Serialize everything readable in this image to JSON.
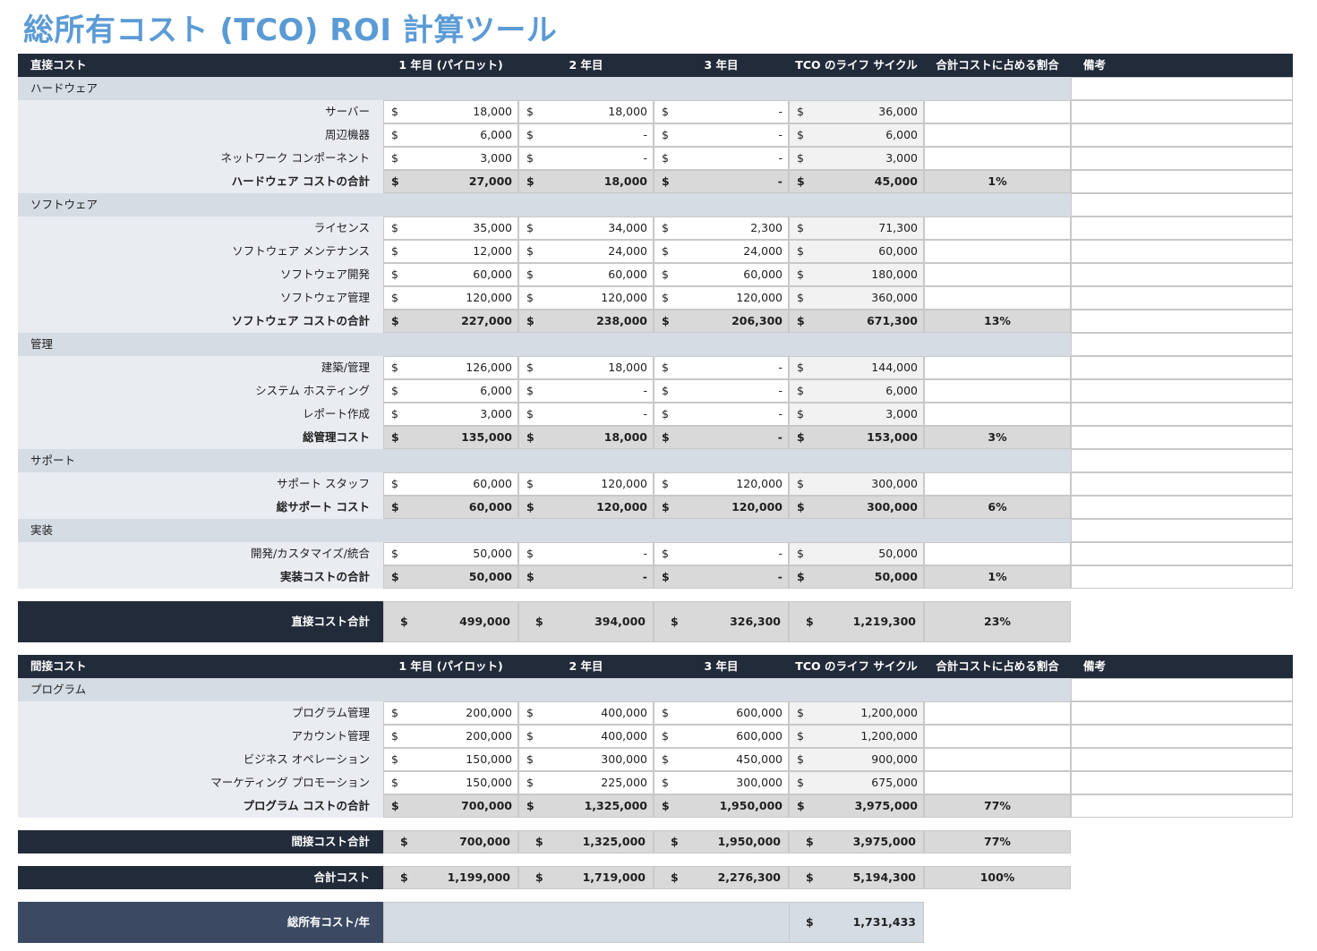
{
  "title": "総所有コスト (TCO) ROI 計算ツール",
  "columns": {
    "y1": "1 年目 (パイロット)",
    "y2": "2 年目",
    "y3": "3 年目",
    "lifecycle": "TCO のライフ サイクル",
    "pct": "合計コストに占める割合",
    "notes": "備考"
  },
  "currency": "$",
  "direct": {
    "header": "直接コスト",
    "categories": [
      {
        "name": "ハードウェア",
        "items": [
          {
            "label": "サーバー",
            "y1": "18,000",
            "y2": "18,000",
            "y3": "-",
            "lc": "36,000"
          },
          {
            "label": "周辺機器",
            "y1": "6,000",
            "y2": "-",
            "y3": "-",
            "lc": "6,000"
          },
          {
            "label": "ネットワーク コンポーネント",
            "y1": "3,000",
            "y2": "-",
            "y3": "-",
            "lc": "3,000"
          }
        ],
        "subtotal": {
          "label": "ハードウェア コストの合計",
          "y1": "27,000",
          "y2": "18,000",
          "y3": "-",
          "lc": "45,000",
          "pct": "1%"
        }
      },
      {
        "name": "ソフトウェア",
        "items": [
          {
            "label": "ライセンス",
            "y1": "35,000",
            "y2": "34,000",
            "y3": "2,300",
            "lc": "71,300"
          },
          {
            "label": "ソフトウェア メンテナンス",
            "y1": "12,000",
            "y2": "24,000",
            "y3": "24,000",
            "lc": "60,000"
          },
          {
            "label": "ソフトウェア開発",
            "y1": "60,000",
            "y2": "60,000",
            "y3": "60,000",
            "lc": "180,000"
          },
          {
            "label": "ソフトウェア管理",
            "y1": "120,000",
            "y2": "120,000",
            "y3": "120,000",
            "lc": "360,000"
          }
        ],
        "subtotal": {
          "label": "ソフトウェア コストの合計",
          "y1": "227,000",
          "y2": "238,000",
          "y3": "206,300",
          "lc": "671,300",
          "pct": "13%"
        }
      },
      {
        "name": "管理",
        "items": [
          {
            "label": "建築/管理",
            "y1": "126,000",
            "y2": "18,000",
            "y3": "-",
            "lc": "144,000"
          },
          {
            "label": "システム ホスティング",
            "y1": "6,000",
            "y2": "-",
            "y3": "-",
            "lc": "6,000"
          },
          {
            "label": "レポート作成",
            "y1": "3,000",
            "y2": "-",
            "y3": "-",
            "lc": "3,000"
          }
        ],
        "subtotal": {
          "label": "総管理コスト",
          "y1": "135,000",
          "y2": "18,000",
          "y3": "-",
          "lc": "153,000",
          "pct": "3%"
        }
      },
      {
        "name": "サポート",
        "items": [
          {
            "label": "サポート スタッフ",
            "y1": "60,000",
            "y2": "120,000",
            "y3": "120,000",
            "lc": "300,000"
          }
        ],
        "subtotal": {
          "label": "総サポート コスト",
          "y1": "60,000",
          "y2": "120,000",
          "y3": "120,000",
          "lc": "300,000",
          "pct": "6%"
        }
      },
      {
        "name": "実装",
        "items": [
          {
            "label": "開発/カスタマイズ/統合",
            "y1": "50,000",
            "y2": "-",
            "y3": "-",
            "lc": "50,000"
          }
        ],
        "subtotal": {
          "label": "実装コストの合計",
          "y1": "50,000",
          "y2": "-",
          "y3": "-",
          "lc": "50,000",
          "pct": "1%"
        }
      }
    ],
    "total": {
      "label": "直接コスト合計",
      "y1": "499,000",
      "y2": "394,000",
      "y3": "326,300",
      "lc": "1,219,300",
      "pct": "23%"
    }
  },
  "indirect": {
    "header": "間接コスト",
    "categories": [
      {
        "name": "プログラム",
        "items": [
          {
            "label": "プログラム管理",
            "y1": "200,000",
            "y2": "400,000",
            "y3": "600,000",
            "lc": "1,200,000"
          },
          {
            "label": "アカウント管理",
            "y1": "200,000",
            "y2": "400,000",
            "y3": "600,000",
            "lc": "1,200,000"
          },
          {
            "label": "ビジネス オペレーション",
            "y1": "150,000",
            "y2": "300,000",
            "y3": "450,000",
            "lc": "900,000"
          },
          {
            "label": "マーケティング プロモーション",
            "y1": "150,000",
            "y2": "225,000",
            "y3": "300,000",
            "lc": "675,000"
          }
        ],
        "subtotal": {
          "label": "プログラム コストの合計",
          "y1": "700,000",
          "y2": "1,325,000",
          "y3": "1,950,000",
          "lc": "3,975,000",
          "pct": "77%"
        }
      }
    ],
    "total": {
      "label": "間接コスト合計",
      "y1": "700,000",
      "y2": "1,325,000",
      "y3": "1,950,000",
      "lc": "3,975,000",
      "pct": "77%"
    }
  },
  "grand_total": {
    "label": "合計コスト",
    "y1": "1,199,000",
    "y2": "1,719,000",
    "y3": "2,276,300",
    "lc": "5,194,300",
    "pct": "100%"
  },
  "per_year": {
    "label": "総所有コスト/年",
    "value": "1,731,433"
  }
}
